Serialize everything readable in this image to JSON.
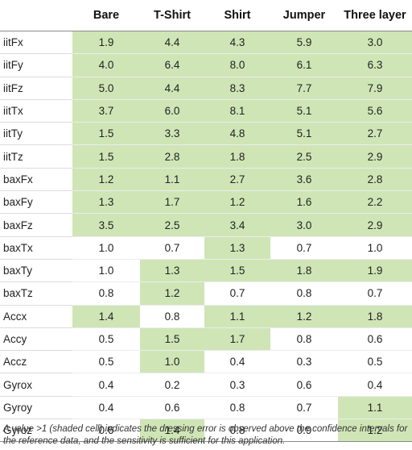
{
  "table": {
    "columns": [
      "",
      "Bare",
      "T-Shirt",
      "Shirt",
      "Jumper",
      "Three layer"
    ],
    "rows": [
      {
        "label": "iitFx",
        "values": [
          "1.9",
          "4.4",
          "4.3",
          "5.9",
          "3.0"
        ],
        "shaded": [
          true,
          true,
          true,
          true,
          true
        ]
      },
      {
        "label": "iitFy",
        "values": [
          "4.0",
          "6.4",
          "8.0",
          "6.1",
          "6.3"
        ],
        "shaded": [
          true,
          true,
          true,
          true,
          true
        ]
      },
      {
        "label": "iitFz",
        "values": [
          "5.0",
          "4.4",
          "8.3",
          "7.7",
          "7.9"
        ],
        "shaded": [
          true,
          true,
          true,
          true,
          true
        ]
      },
      {
        "label": "iitTx",
        "values": [
          "3.7",
          "6.0",
          "8.1",
          "5.1",
          "5.6"
        ],
        "shaded": [
          true,
          true,
          true,
          true,
          true
        ]
      },
      {
        "label": "iitTy",
        "values": [
          "1.5",
          "3.3",
          "4.8",
          "5.1",
          "2.7"
        ],
        "shaded": [
          true,
          true,
          true,
          true,
          true
        ]
      },
      {
        "label": "iitTz",
        "values": [
          "1.5",
          "2.8",
          "1.8",
          "2.5",
          "2.9"
        ],
        "shaded": [
          true,
          true,
          true,
          true,
          true
        ]
      },
      {
        "label": "baxFx",
        "values": [
          "1.2",
          "1.1",
          "2.7",
          "3.6",
          "2.8"
        ],
        "shaded": [
          true,
          true,
          true,
          true,
          true
        ]
      },
      {
        "label": "baxFy",
        "values": [
          "1.3",
          "1.7",
          "1.2",
          "1.6",
          "2.2"
        ],
        "shaded": [
          true,
          true,
          true,
          true,
          true
        ]
      },
      {
        "label": "baxFz",
        "values": [
          "3.5",
          "2.5",
          "3.4",
          "3.0",
          "2.9"
        ],
        "shaded": [
          true,
          true,
          true,
          true,
          true
        ]
      },
      {
        "label": "baxTx",
        "values": [
          "1.0",
          "0.7",
          "1.3",
          "0.7",
          "1.0"
        ],
        "shaded": [
          false,
          false,
          true,
          false,
          false
        ]
      },
      {
        "label": "baxTy",
        "values": [
          "1.0",
          "1.3",
          "1.5",
          "1.8",
          "1.9"
        ],
        "shaded": [
          false,
          true,
          true,
          true,
          true
        ]
      },
      {
        "label": "baxTz",
        "values": [
          "0.8",
          "1.2",
          "0.7",
          "0.8",
          "0.7"
        ],
        "shaded": [
          false,
          true,
          false,
          false,
          false
        ]
      },
      {
        "label": "Accx",
        "values": [
          "1.4",
          "0.8",
          "1.1",
          "1.2",
          "1.8"
        ],
        "shaded": [
          true,
          false,
          true,
          true,
          true
        ]
      },
      {
        "label": "Accy",
        "values": [
          "0.5",
          "1.5",
          "1.7",
          "0.8",
          "0.6"
        ],
        "shaded": [
          false,
          true,
          true,
          false,
          false
        ]
      },
      {
        "label": "Accz",
        "values": [
          "0.5",
          "1.0",
          "0.4",
          "0.3",
          "0.5"
        ],
        "shaded": [
          false,
          true,
          false,
          false,
          false
        ]
      },
      {
        "label": "Gyrox",
        "values": [
          "0.4",
          "0.2",
          "0.3",
          "0.6",
          "0.4"
        ],
        "shaded": [
          false,
          false,
          false,
          false,
          false
        ]
      },
      {
        "label": "Gyroy",
        "values": [
          "0.4",
          "0.6",
          "0.8",
          "0.7",
          "1.1"
        ],
        "shaded": [
          false,
          false,
          false,
          false,
          true
        ]
      },
      {
        "label": "Gyroz",
        "values": [
          "0.6",
          "1.4",
          "0.8",
          "0.9",
          "1.2"
        ],
        "shaded": [
          false,
          true,
          false,
          false,
          true
        ]
      }
    ],
    "shade_color": "#cfe5b6"
  },
  "footnote": "A value >1 (shaded cell) indicates the dressing error is observed above the confidence intervals for the reference data, and the sensitivity is sufficient for this application."
}
